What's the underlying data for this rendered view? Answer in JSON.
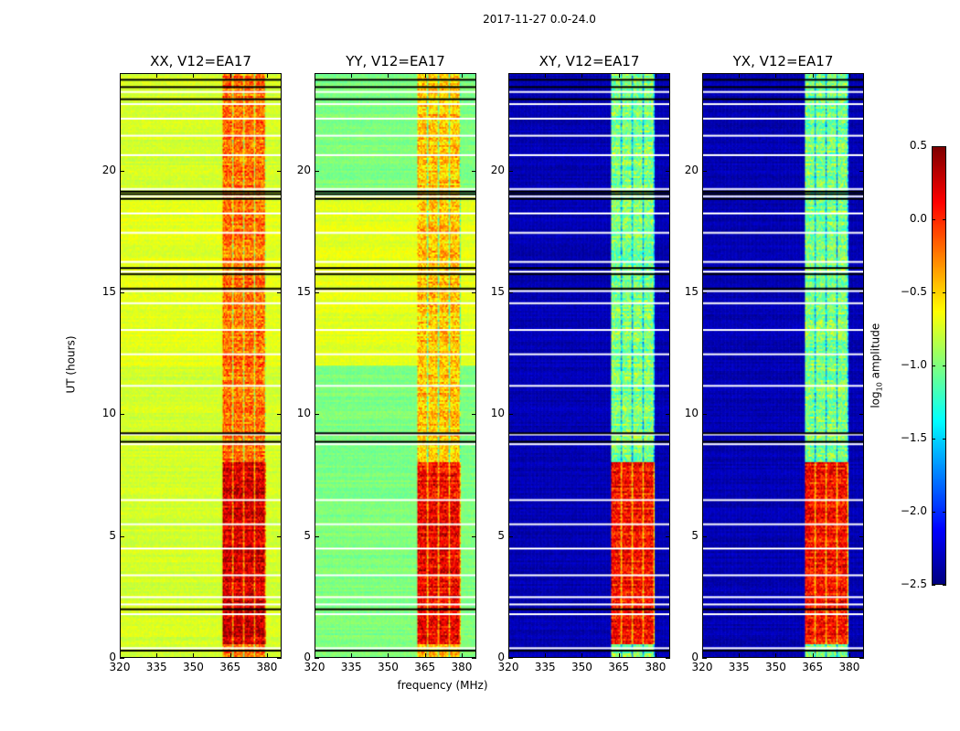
{
  "chart_data": {
    "type": "heatmap",
    "title": "2017-11-27 0.0-24.0",
    "xlabel": "frequency (MHz)",
    "ylabel": "UT (hours)",
    "xlim": [
      320,
      386
    ],
    "ylim": [
      0,
      24
    ],
    "xticks": [
      "320",
      "335",
      "350",
      "365",
      "380"
    ],
    "xtick_values": [
      320,
      335,
      350,
      365,
      380
    ],
    "yticks": [
      "0",
      "5",
      "10",
      "15",
      "20"
    ],
    "ytick_values": [
      0,
      5,
      10,
      15,
      20
    ],
    "colorbar": {
      "label": "log₁₀ amplitude",
      "label_base": "log",
      "label_sub": "10",
      "label_rest": " amplitude",
      "colormap": "jet",
      "range": [
        -2.5,
        0.5
      ],
      "ticks": [
        "0.5",
        "0.0",
        "−0.5",
        "−1.0",
        "−1.5",
        "−2.0",
        "−2.5"
      ],
      "tick_values": [
        0.5,
        0.0,
        -0.5,
        -1.0,
        -1.5,
        -2.0,
        -2.5
      ]
    },
    "rfi_band_mhz": [
      362,
      380
    ],
    "strong_period_hours": [
      0.5,
      8.0
    ],
    "panels": [
      {
        "title": "XX, V12=EA17",
        "base": -0.75,
        "alt_base": -0.7,
        "band": -0.2,
        "strong": 0.25
      },
      {
        "title": "YY, V12=EA17",
        "base": -1.0,
        "alt_base": -0.7,
        "band": -0.45,
        "strong": 0.15
      },
      {
        "title": "XY, V12=EA17",
        "base": -2.35,
        "alt_base": -2.35,
        "band": -1.0,
        "strong": 0.1
      },
      {
        "title": "YX, V12=EA17",
        "base": -2.35,
        "alt_base": -2.35,
        "band": -1.0,
        "strong": 0.1
      }
    ],
    "flagged_white_hours": [
      0.4,
      1.8,
      2.2,
      2.5,
      3.4,
      4.5,
      5.5,
      6.5,
      8.8,
      9.2,
      11.2,
      12.5,
      13.5,
      14.6,
      15.1,
      15.9,
      16.3,
      17.5,
      18.3,
      19.0,
      19.3,
      20.7,
      21.5,
      22.2,
      22.8,
      23.3
    ],
    "flagged_black_hours": [
      0.3,
      2.0,
      8.9,
      9.25,
      15.2,
      15.8,
      16.05,
      18.9,
      19.1,
      19.2,
      23.0,
      23.5,
      23.8
    ]
  }
}
